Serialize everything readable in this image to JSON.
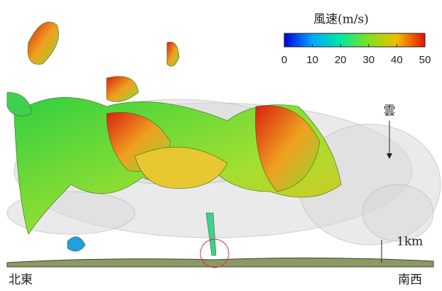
{
  "colorbar": {
    "title": "風速(m/s)",
    "range": [
      0,
      50
    ],
    "ticks": [
      0,
      10,
      20,
      30,
      40,
      50
    ]
  },
  "labels": {
    "cloud": "雲",
    "height": "1km",
    "left": "北東",
    "right": "南西"
  }
}
